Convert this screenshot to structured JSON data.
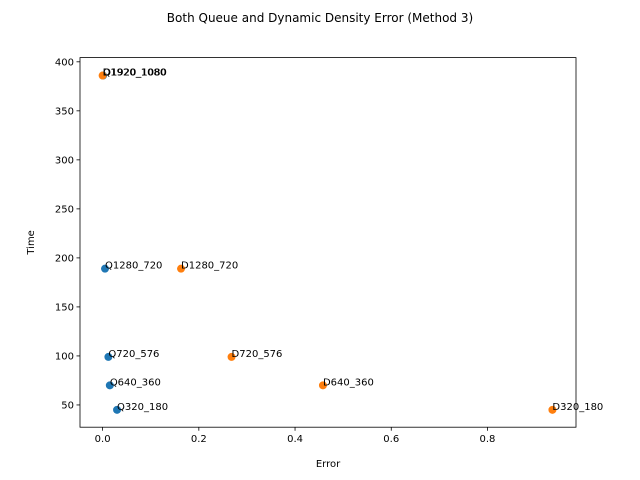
{
  "chart_data": {
    "type": "scatter",
    "title": "Both Queue and Dynamic Density Error (Method 3)",
    "xlabel": "Error",
    "ylabel": "Time",
    "xlim": [
      -0.047,
      0.984
    ],
    "ylim": [
      27.3,
      404.3
    ],
    "xticks": [
      0.0,
      0.2,
      0.4,
      0.6,
      0.8
    ],
    "xtick_labels": [
      "0.0",
      "0.2",
      "0.4",
      "0.6",
      "0.8"
    ],
    "yticks": [
      50,
      100,
      150,
      200,
      250,
      300,
      350,
      400
    ],
    "ytick_labels": [
      "50",
      "100",
      "150",
      "200",
      "250",
      "300",
      "350",
      "400"
    ],
    "grid": false,
    "series": [
      {
        "color": "#1f77b4",
        "points": [
          {
            "x": 0.001,
            "y": 386,
            "label": "Q1920_1080"
          },
          {
            "x": 0.005,
            "y": 189,
            "label": "Q1280_720"
          },
          {
            "x": 0.012,
            "y": 99,
            "label": "Q720_576"
          },
          {
            "x": 0.015,
            "y": 70,
            "label": "Q640_360"
          },
          {
            "x": 0.03,
            "y": 45,
            "label": "Q320_180"
          }
        ]
      },
      {
        "color": "#ff7f0e",
        "points": [
          {
            "x": 0.0,
            "y": 386,
            "label": "D1920_1080"
          },
          {
            "x": 0.163,
            "y": 189,
            "label": "D1280_720"
          },
          {
            "x": 0.268,
            "y": 99,
            "label": "D720_576"
          },
          {
            "x": 0.458,
            "y": 70,
            "label": "D640_360"
          },
          {
            "x": 0.935,
            "y": 45,
            "label": "D320_180"
          }
        ]
      }
    ]
  }
}
